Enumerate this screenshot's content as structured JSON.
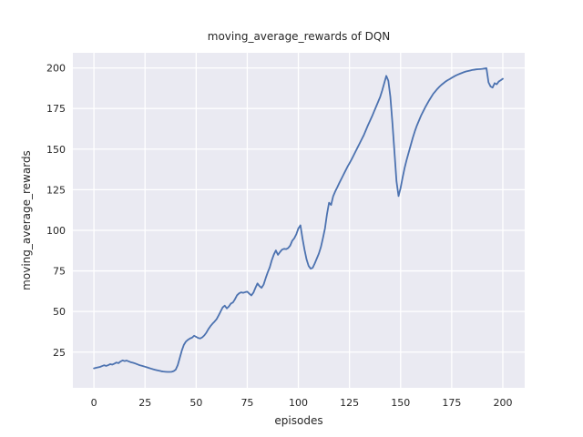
{
  "chart_data": {
    "type": "line",
    "title": "moving_average_rewards of DQN",
    "xlabel": "episodes",
    "ylabel": "moving_average_rewards",
    "x_ticks": [
      0,
      25,
      50,
      75,
      100,
      125,
      150,
      175,
      200
    ],
    "y_ticks": [
      25,
      50,
      75,
      100,
      125,
      150,
      175,
      200
    ],
    "xlim": [
      -10.3,
      210.7
    ],
    "ylim": [
      3.0,
      209.3
    ],
    "grid": true,
    "legend_position": "none",
    "colors": {
      "line": "#4C72B0",
      "plot_bg": "#EAEAF2",
      "grid": "#FFFFFF",
      "text": "#262626",
      "figure_bg": "#FFFFFF"
    },
    "series": [
      {
        "x": [
          0,
          1,
          2,
          3,
          4,
          5,
          6,
          7,
          8,
          9,
          10,
          11,
          12,
          13,
          14,
          15,
          16,
          17,
          18,
          19,
          20,
          21,
          22,
          23,
          24,
          25,
          26,
          27,
          28,
          29,
          30,
          31,
          32,
          33,
          34,
          35,
          36,
          37,
          38,
          39,
          40,
          41,
          42,
          43,
          44,
          45,
          46,
          47,
          48,
          49,
          50,
          51,
          52,
          53,
          54,
          55,
          56,
          57,
          58,
          59,
          60,
          61,
          62,
          63,
          64,
          65,
          66,
          67,
          68,
          69,
          70,
          71,
          72,
          73,
          74,
          75,
          76,
          77,
          78,
          79,
          80,
          81,
          82,
          83,
          84,
          85,
          86,
          87,
          88,
          89,
          90,
          91,
          92,
          93,
          94,
          95,
          96,
          97,
          98,
          99,
          100,
          101,
          102,
          103,
          104,
          105,
          106,
          107,
          108,
          109,
          110,
          111,
          112,
          113,
          114,
          115,
          116,
          117,
          118,
          119,
          120,
          121,
          122,
          123,
          124,
          125,
          126,
          127,
          128,
          129,
          130,
          131,
          132,
          133,
          134,
          135,
          136,
          137,
          138,
          139,
          140,
          141,
          142,
          143,
          144,
          145,
          146,
          147,
          148,
          149,
          150,
          151,
          152,
          153,
          154,
          155,
          156,
          157,
          158,
          159,
          160,
          161,
          162,
          163,
          164,
          165,
          166,
          167,
          168,
          169,
          170,
          171,
          172,
          173,
          174,
          175,
          176,
          177,
          178,
          179,
          180,
          181,
          182,
          183,
          184,
          185,
          186,
          187,
          188,
          189,
          190,
          191,
          192,
          193,
          194,
          195,
          196,
          197,
          198,
          199,
          200
        ],
        "y": [
          15.0,
          15.3,
          15.6,
          15.9,
          16.4,
          16.9,
          16.5,
          17.0,
          17.6,
          17.3,
          17.9,
          18.6,
          18.2,
          19.2,
          19.9,
          19.5,
          19.8,
          19.3,
          18.8,
          18.5,
          18.1,
          17.6,
          17.1,
          16.7,
          16.4,
          16.0,
          15.6,
          15.2,
          14.8,
          14.4,
          14.1,
          13.8,
          13.5,
          13.2,
          13.0,
          12.9,
          12.8,
          12.8,
          12.9,
          13.3,
          14.2,
          17.0,
          21.5,
          26.0,
          29.5,
          31.5,
          32.6,
          33.4,
          33.9,
          35.1,
          34.4,
          33.7,
          33.4,
          34.1,
          35.3,
          37.0,
          39.2,
          41.0,
          42.5,
          43.8,
          45.3,
          47.6,
          50.1,
          52.6,
          53.6,
          51.9,
          53.1,
          54.9,
          55.6,
          57.6,
          60.0,
          61.2,
          61.8,
          61.5,
          61.9,
          62.2,
          61.0,
          59.9,
          61.6,
          64.6,
          67.3,
          65.6,
          64.6,
          66.6,
          70.5,
          74.1,
          77.2,
          81.6,
          85.1,
          87.6,
          84.9,
          86.6,
          88.1,
          88.6,
          88.4,
          89.1,
          90.6,
          93.6,
          95.1,
          97.6,
          101.2,
          103.1,
          95.1,
          88.1,
          82.1,
          78.1,
          76.4,
          76.9,
          79.6,
          82.6,
          85.6,
          89.6,
          95.1,
          101.1,
          110.0,
          117.0,
          115.6,
          120.9,
          123.9,
          126.4,
          129.1,
          131.6,
          134.1,
          136.6,
          139.1,
          141.3,
          143.6,
          146.1,
          148.6,
          151.1,
          153.6,
          156.1,
          158.6,
          161.6,
          164.6,
          167.3,
          170.1,
          173.1,
          176.1,
          179.1,
          182.1,
          186.1,
          190.6,
          195.1,
          192.1,
          182.1,
          166.1,
          148.1,
          130.1,
          121.1,
          126.1,
          132.6,
          138.6,
          143.6,
          148.1,
          152.6,
          157.1,
          161.1,
          164.6,
          167.6,
          170.6,
          173.1,
          175.6,
          177.9,
          180.1,
          182.1,
          184.1,
          185.6,
          187.1,
          188.4,
          189.6,
          190.6,
          191.6,
          192.4,
          193.1,
          193.9,
          194.6,
          195.3,
          195.9,
          196.4,
          196.9,
          197.4,
          197.8,
          198.1,
          198.4,
          198.7,
          198.9,
          199.1,
          199.2,
          199.3,
          199.4,
          199.6,
          199.8,
          191.1,
          188.6,
          187.9,
          190.6,
          189.9,
          191.6,
          192.4,
          193.3
        ]
      }
    ]
  }
}
